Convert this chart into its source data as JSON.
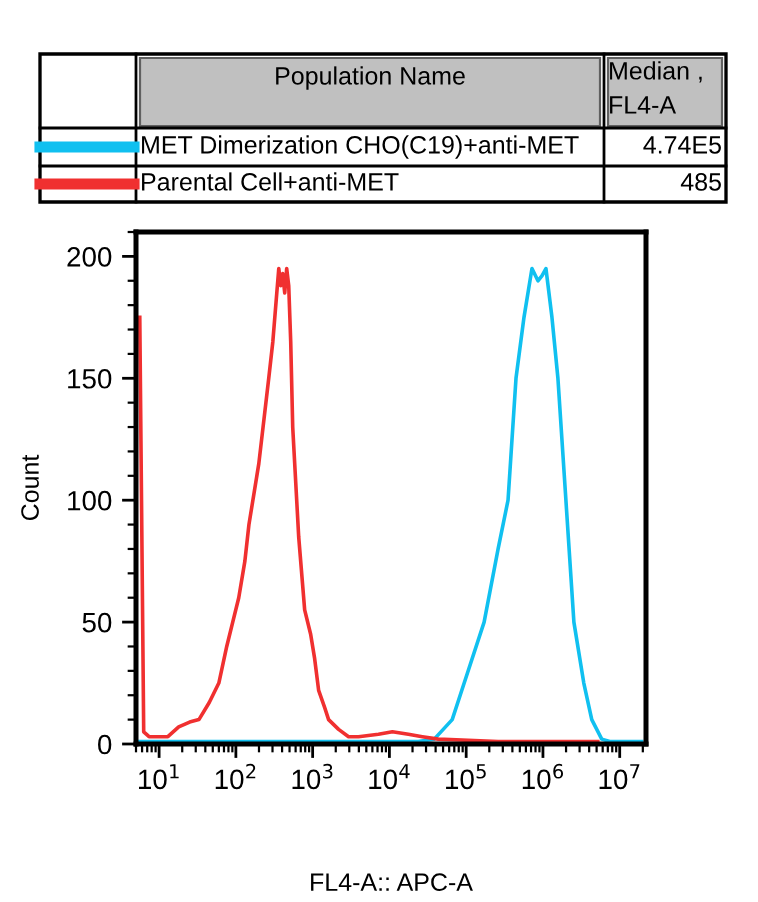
{
  "chart_data": {
    "type": "line",
    "xlabel": "FL4-A:: APC-A",
    "ylabel": "Count",
    "legend_title": "Population Name",
    "legend": "top",
    "annotations": [
      "Median , FL4-A",
      "4.74E5",
      "485"
    ],
    "log": "x",
    "grid": false,
    "marker": "none",
    "line_style": "solid",
    "xlim": [
      5,
      22000000
    ],
    "ylim": [
      0,
      210
    ],
    "xticks": [
      {
        "value": 10,
        "label": "10$^{1}$"
      },
      {
        "value": 100,
        "label": "10$^{2}$"
      },
      {
        "value": 1000,
        "label": "10$^{3}$"
      },
      {
        "value": 10000,
        "label": "10$^{4}$"
      },
      {
        "value": 100000,
        "label": "10$^{5}$"
      },
      {
        "value": 1000000,
        "label": "10$^{6}$"
      },
      {
        "value": 10000000,
        "label": "10$^{7}$"
      }
    ],
    "yticks": [
      0,
      50,
      100,
      150,
      200
    ],
    "series": [
      {
        "name": "MET Dimerization CHO(C19)+anti-MET",
        "color": "#10c0f0",
        "x": [
          5.5,
          23800,
          38370,
          65760,
          94200,
          171300,
          260600,
          351000,
          445600,
          566200,
          719400,
          860700,
          970000,
          1094000,
          1310000,
          1567000,
          1991000,
          2530000,
          3405000,
          4325000,
          5834000,
          7413000,
          19320000
        ],
        "values": [
          1,
          1,
          2,
          10,
          25,
          50,
          80,
          100,
          150,
          175,
          195,
          190,
          192,
          195,
          175,
          150,
          100,
          50,
          25,
          10,
          2,
          1,
          1
        ]
      },
      {
        "name": "Parental Cell+anti-MET",
        "color": "#f03030",
        "x": [
          5.6,
          5.9,
          6.3,
          7.4,
          13,
          18,
          25,
          33,
          45,
          60,
          76,
          91,
          109,
          131,
          148,
          199,
          268,
          303,
          362,
          384,
          407,
          433,
          459,
          488,
          518,
          550,
          658,
          787,
          942,
          1062,
          1197,
          1432,
          1614,
          2178,
          2938,
          3956,
          7194,
          10940,
          17660,
          26850,
          43250,
          260600,
          5180000
        ],
        "values": [
          175,
          100,
          5,
          3,
          3,
          7,
          9,
          10,
          17,
          25,
          40,
          50,
          60,
          75,
          90,
          115,
          150,
          165,
          195,
          188,
          193,
          185,
          195,
          188,
          165,
          130,
          85,
          55,
          45,
          35,
          22,
          15,
          10,
          6,
          3,
          3,
          4,
          5,
          4,
          3,
          2,
          1,
          1
        ]
      }
    ]
  }
}
